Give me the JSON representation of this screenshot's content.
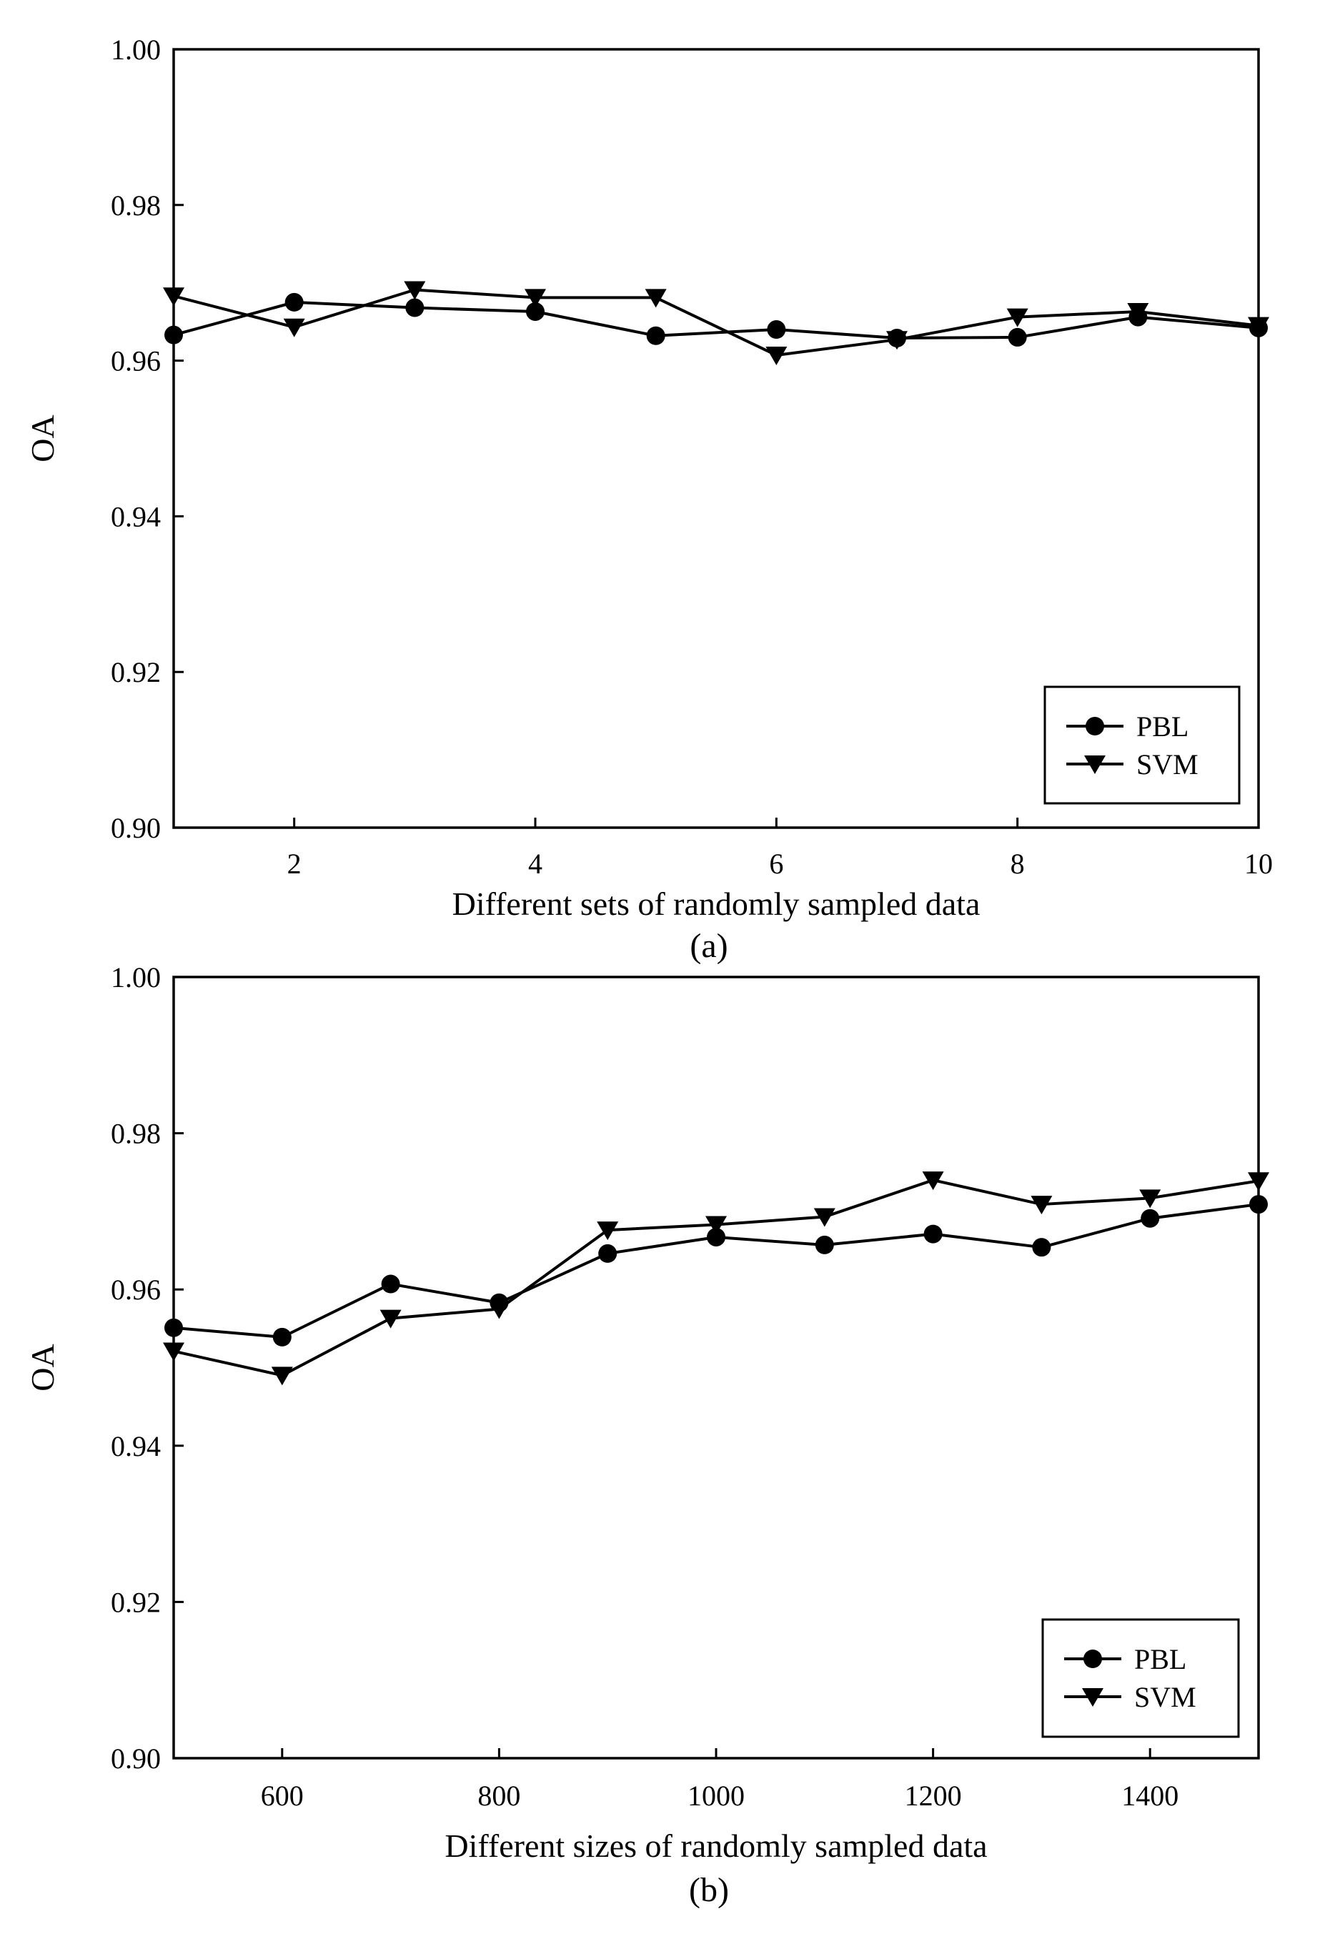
{
  "chart_data": [
    {
      "type": "line",
      "panel": "a",
      "caption": "(a)",
      "xlabel": "Different sets of  randomly sampled data",
      "ylabel": "OA",
      "xlim": [
        1,
        10
      ],
      "ylim": [
        0.9,
        1.0
      ],
      "xticks": [
        2,
        4,
        6,
        8,
        10
      ],
      "xtick_labels": [
        "2",
        "4",
        "6",
        "8",
        "10"
      ],
      "yticks": [
        0.9,
        0.92,
        0.94,
        0.96,
        0.98,
        1.0
      ],
      "ytick_labels": [
        "0.90",
        "0.92",
        "0.94",
        "0.96",
        "0.98",
        "1.00"
      ],
      "grid": false,
      "legend_position": "bottom-right",
      "x": [
        1,
        2,
        3,
        4,
        5,
        6,
        7,
        8,
        9,
        10
      ],
      "series": [
        {
          "name": "PBL",
          "marker": "circle",
          "values": [
            0.9633,
            0.9675,
            0.9668,
            0.9663,
            0.9632,
            0.964,
            0.9629,
            0.963,
            0.9656,
            0.9642
          ]
        },
        {
          "name": "SVM",
          "marker": "triangle-down",
          "values": [
            0.9683,
            0.9643,
            0.9691,
            0.9681,
            0.9681,
            0.9607,
            0.9627,
            0.9656,
            0.9663,
            0.9645
          ]
        }
      ]
    },
    {
      "type": "line",
      "panel": "b",
      "caption": "(b)",
      "xlabel": "Different sizes of randomly sampled data",
      "ylabel": "OA",
      "xlim": [
        500,
        1500
      ],
      "ylim": [
        0.9,
        1.0
      ],
      "xticks": [
        600,
        800,
        1000,
        1200,
        1400
      ],
      "xtick_labels": [
        "600",
        "800",
        "1000",
        "1200",
        "1400"
      ],
      "yticks": [
        0.9,
        0.92,
        0.94,
        0.96,
        0.98,
        1.0
      ],
      "ytick_labels": [
        "0.90",
        "0.92",
        "0.94",
        "0.96",
        "0.98",
        "1.00"
      ],
      "grid": false,
      "legend_position": "bottom-right",
      "x": [
        500,
        600,
        700,
        800,
        900,
        1000,
        1100,
        1200,
        1300,
        1400,
        1500
      ],
      "series": [
        {
          "name": "PBL",
          "marker": "circle",
          "values": [
            0.9551,
            0.9539,
            0.9607,
            0.9583,
            0.9646,
            0.9667,
            0.9657,
            0.9671,
            0.9654,
            0.9691,
            0.9709
          ]
        },
        {
          "name": "SVM",
          "marker": "triangle-down",
          "values": [
            0.9521,
            0.949,
            0.9563,
            0.9575,
            0.9676,
            0.9683,
            0.9693,
            0.974,
            0.9709,
            0.9717,
            0.9739
          ]
        }
      ]
    }
  ]
}
